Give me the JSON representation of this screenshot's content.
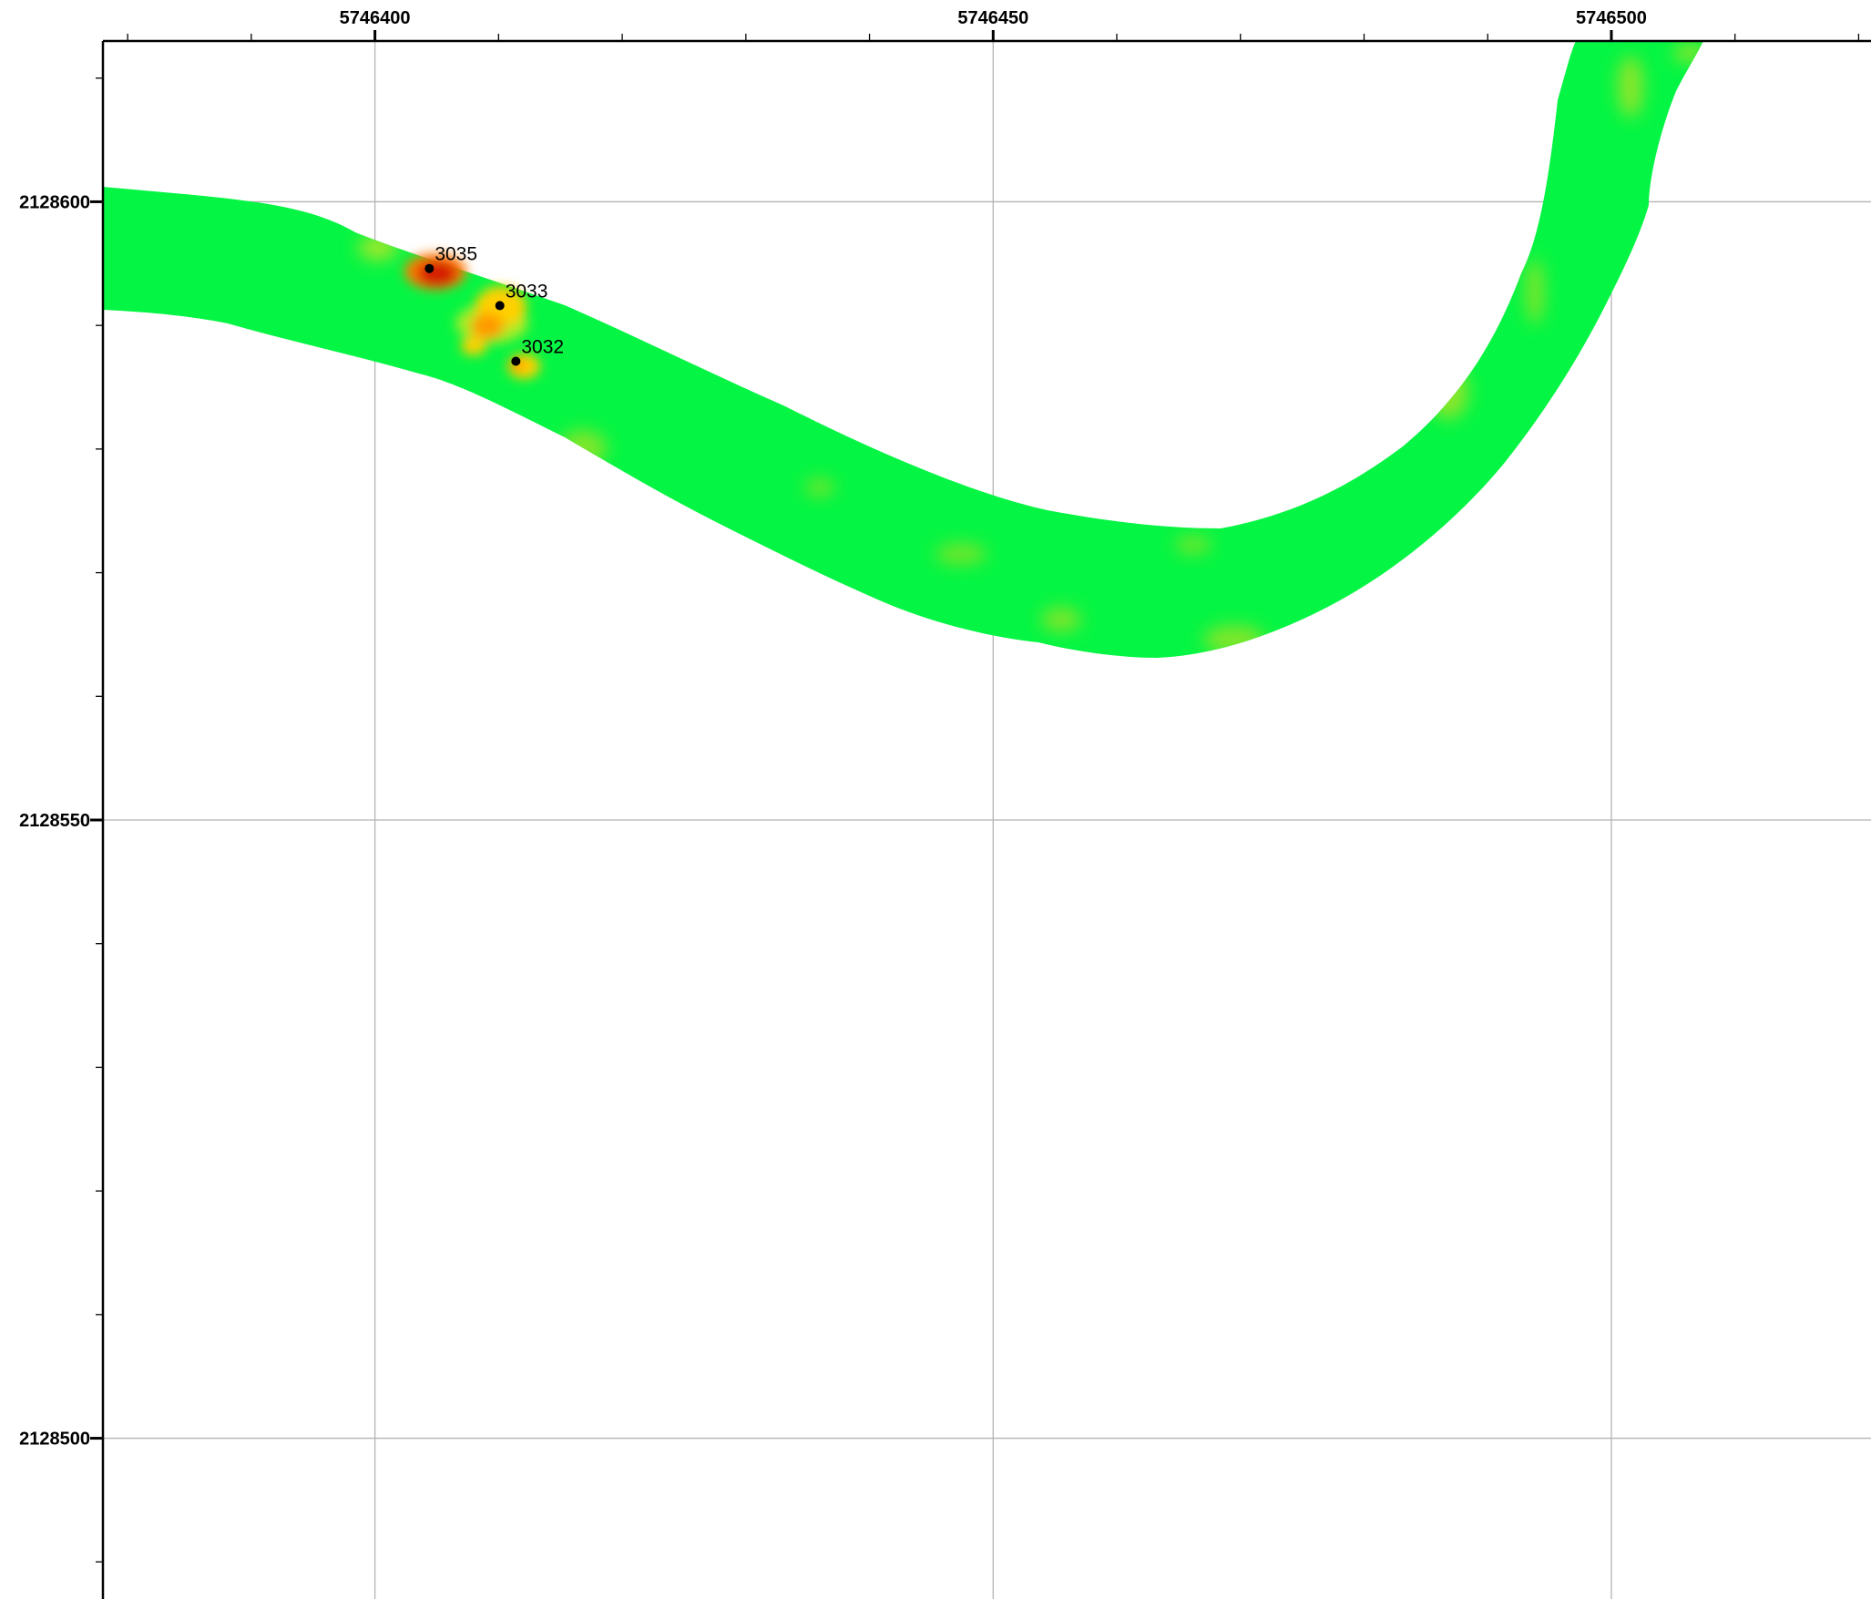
{
  "map": {
    "x_axis": {
      "labels": [
        "5746400",
        "5746450",
        "5746500"
      ],
      "values": [
        5746400,
        5746450,
        5746500
      ],
      "range": [
        5746378,
        5746521
      ],
      "minor_step": 10
    },
    "y_axis": {
      "labels": [
        "2128600",
        "2128550",
        "2128500"
      ],
      "values": [
        2128600,
        2128550,
        2128500
      ],
      "range": [
        2128487,
        2128613
      ],
      "minor_step": 10
    },
    "grid": true,
    "colors": {
      "background": "#ffffff",
      "frame": "#000000",
      "grid": "#b4b4b4",
      "river_base": "#05f544",
      "river_variation": "#7fe62a",
      "hotspot_high": "#d41a00",
      "hotspot_mid": "#ff7a00",
      "hotspot_low": "#ffd000",
      "point": "#000000"
    },
    "points": [
      {
        "label": "3035",
        "x": 5746404.4,
        "y": 2128594.6
      },
      {
        "label": "3033",
        "x": 5746410.1,
        "y": 2128591.6
      },
      {
        "label": "3032",
        "x": 5746411.4,
        "y": 2128587.1
      }
    ]
  }
}
